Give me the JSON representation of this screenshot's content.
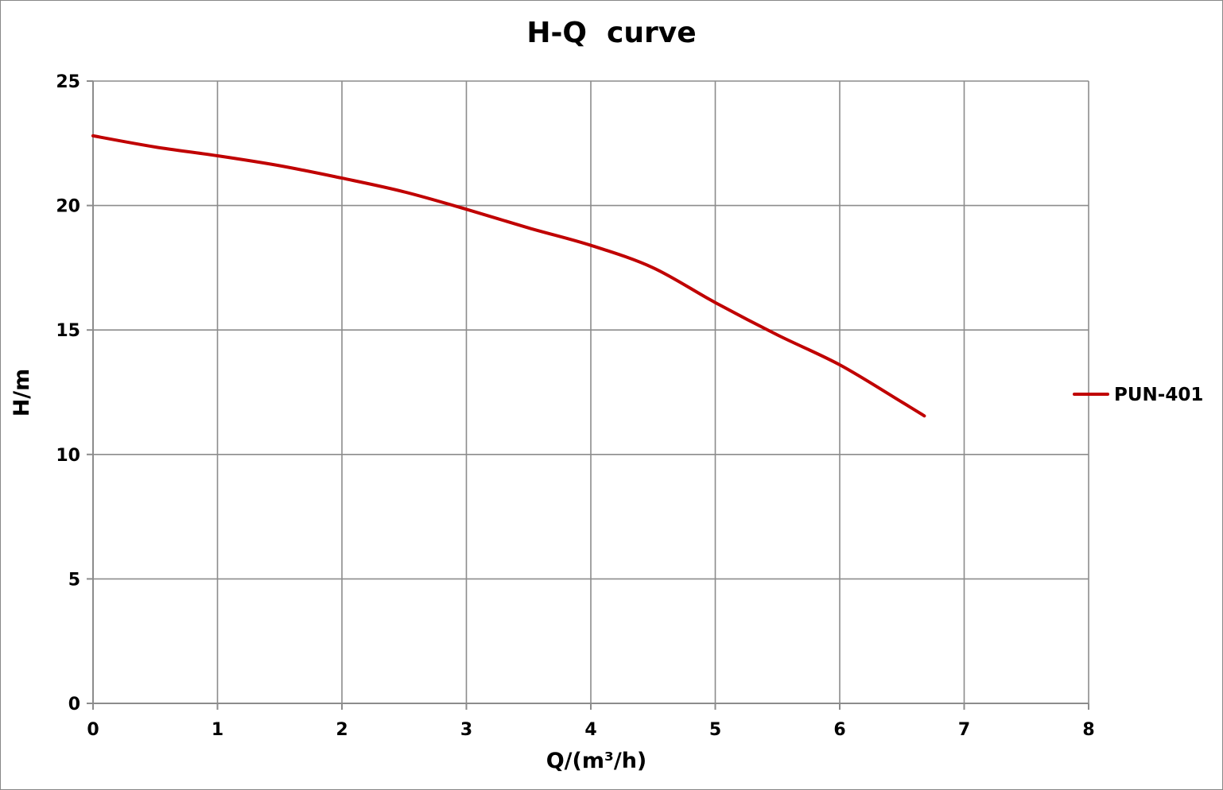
{
  "chart_data": {
    "type": "line",
    "title": "H-Q  curve",
    "xlabel": "Q/(m³/h)",
    "ylabel": "H/m",
    "xlim": [
      0,
      8
    ],
    "ylim": [
      0,
      25
    ],
    "xticks": [
      "0",
      "1",
      "2",
      "3",
      "4",
      "5",
      "6",
      "7",
      "8"
    ],
    "yticks": [
      "0",
      "5",
      "10",
      "15",
      "20",
      "25"
    ],
    "grid": true,
    "legend_position": "right",
    "series": [
      {
        "name": "PUN-401",
        "color": "#c00000",
        "x": [
          0,
          0.5,
          1,
          1.5,
          2,
          2.5,
          3,
          3.5,
          4,
          4.5,
          5,
          5.5,
          6,
          6.5,
          6.68
        ],
        "y": [
          22.8,
          22.35,
          22.0,
          21.6,
          21.1,
          20.55,
          19.85,
          19.1,
          18.4,
          17.5,
          16.1,
          14.8,
          13.6,
          12.1,
          11.55
        ]
      }
    ]
  }
}
